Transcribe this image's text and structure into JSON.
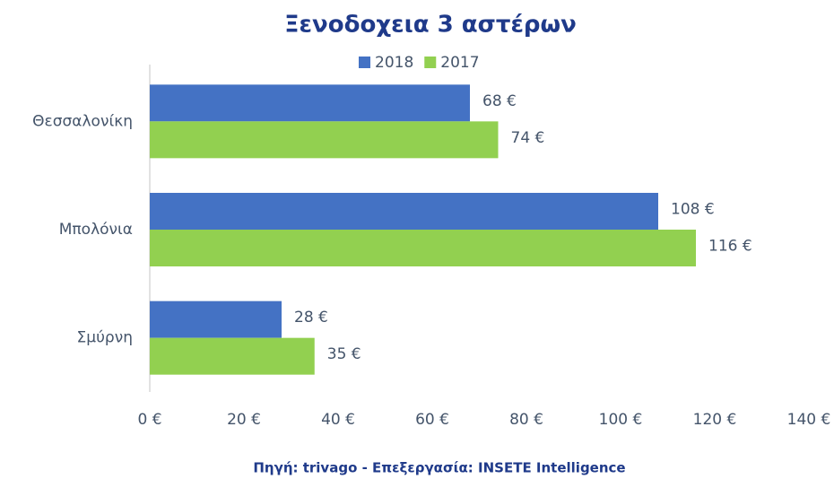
{
  "chart_data": {
    "type": "barh",
    "title": "Ξενοδοχεια 3 αστέρων",
    "source": "Πηγή: trivago - Επεξεργασία: INSETE Intelligence",
    "categories": [
      "Θεσσαλονίκη",
      "Μπολόνια",
      "Σμύρνη"
    ],
    "series": [
      {
        "name": "2018",
        "color": "#4472c4",
        "values": [
          68,
          108,
          28
        ],
        "value_labels": [
          "68 €",
          "108 €",
          "28 €"
        ]
      },
      {
        "name": "2017",
        "color": "#92d050",
        "values": [
          74,
          116,
          35
        ],
        "value_labels": [
          "74 €",
          "116 €",
          "35 €"
        ]
      }
    ],
    "xlim": [
      0,
      140
    ],
    "xticks": [
      {
        "value": 0,
        "label": "0 €"
      },
      {
        "value": 20,
        "label": "20 €"
      },
      {
        "value": 40,
        "label": "40 €"
      },
      {
        "value": 60,
        "label": "60 €"
      },
      {
        "value": 80,
        "label": "80 €"
      },
      {
        "value": 100,
        "label": "100 €"
      },
      {
        "value": 120,
        "label": "120 €"
      },
      {
        "value": 140,
        "label": "140 €"
      }
    ],
    "legend": "top",
    "grid": false
  }
}
